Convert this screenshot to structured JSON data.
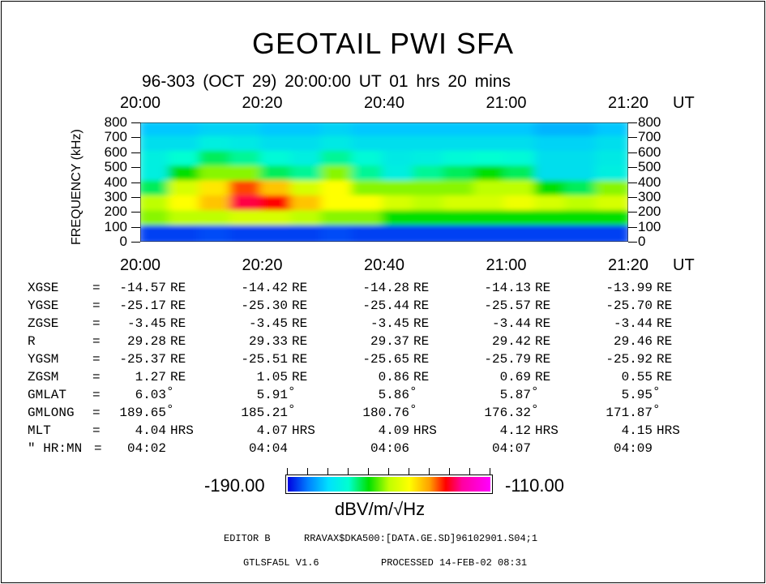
{
  "header": {
    "title": "GEOTAIL PWI SFA",
    "subtitle": "96-303 (OCT 29) 20:00:00 UT   01 hrs  20 mins"
  },
  "chart_data": {
    "type": "heatmap",
    "title": "GEOTAIL PWI SFA",
    "ylabel": "FREQUENCY (kHz)",
    "xlabel": "UT",
    "x_ticks": [
      "20:00",
      "20:20",
      "20:40",
      "21:00",
      "21:20"
    ],
    "x_unit": "UT",
    "y_ticks": [
      "800",
      "700",
      "600",
      "500",
      "400",
      "300",
      "200",
      "100",
      "0"
    ],
    "ylim": [
      0,
      800
    ],
    "xlim": [
      "20:00",
      "21:20"
    ],
    "time_bins_min": [
      0,
      5,
      10,
      15,
      20,
      25,
      30,
      35,
      40,
      45,
      50,
      55,
      60,
      65,
      70,
      75
    ],
    "freq_bins_khz": [
      "700-800",
      "600-700",
      "500-600",
      "400-500",
      "300-400",
      "200-300",
      "100-200",
      "0-100"
    ],
    "values_dB": [
      [
        -172,
        -172,
        -170,
        -170,
        -172,
        -172,
        -170,
        -172,
        -172,
        -172,
        -172,
        -172,
        -172,
        -174,
        -174,
        -172
      ],
      [
        -168,
        -168,
        -165,
        -166,
        -168,
        -168,
        -166,
        -168,
        -168,
        -168,
        -168,
        -168,
        -168,
        -170,
        -170,
        -168
      ],
      [
        -165,
        -162,
        -158,
        -160,
        -163,
        -165,
        -160,
        -163,
        -166,
        -165,
        -163,
        -162,
        -163,
        -168,
        -168,
        -166
      ],
      [
        -165,
        -155,
        -150,
        -150,
        -158,
        -160,
        -150,
        -160,
        -165,
        -160,
        -158,
        -155,
        -158,
        -168,
        -168,
        -165
      ],
      [
        -158,
        -145,
        -138,
        -128,
        -135,
        -145,
        -140,
        -150,
        -150,
        -150,
        -150,
        -148,
        -148,
        -155,
        -158,
        -150
      ],
      [
        -148,
        -140,
        -135,
        -122,
        -125,
        -135,
        -140,
        -140,
        -145,
        -148,
        -145,
        -145,
        -142,
        -145,
        -148,
        -145
      ],
      [
        -150,
        -148,
        -148,
        -145,
        -145,
        -148,
        -150,
        -150,
        -155,
        -155,
        -155,
        -155,
        -155,
        -155,
        -155,
        -155
      ],
      [
        -185,
        -185,
        -184,
        -185,
        -185,
        -185,
        -184,
        -185,
        -185,
        -185,
        -185,
        -185,
        -185,
        -185,
        -185,
        -185
      ]
    ],
    "colorbar": {
      "min_label": "-190.00",
      "max_label": "-110.00",
      "min": -190,
      "max": -110,
      "unit": "dBV/m/√Hz"
    }
  },
  "ephemeris": {
    "rows": [
      {
        "label": "XGSE",
        "unit": "RE",
        "values": [
          "-14.57",
          "-14.42",
          "-14.28",
          "-14.13",
          "-13.99"
        ]
      },
      {
        "label": "YGSE",
        "unit": "RE",
        "values": [
          "-25.17",
          "-25.30",
          "-25.44",
          "-25.57",
          "-25.70"
        ]
      },
      {
        "label": "ZGSE",
        "unit": "RE",
        "values": [
          "-3.45",
          "-3.45",
          "-3.45",
          "-3.44",
          "-3.44"
        ]
      },
      {
        "label": "R",
        "unit": "RE",
        "values": [
          "29.28",
          "29.33",
          "29.37",
          "29.42",
          "29.46"
        ]
      },
      {
        "label": "YGSM",
        "unit": "RE",
        "values": [
          "-25.37",
          "-25.51",
          "-25.65",
          "-25.79",
          "-25.92"
        ]
      },
      {
        "label": "ZGSM",
        "unit": "RE",
        "values": [
          "1.27",
          "1.05",
          "0.86",
          "0.69",
          "0.55"
        ]
      },
      {
        "label": "GMLAT",
        "unit": "°",
        "values": [
          "6.03",
          "5.91",
          "5.86",
          "5.87",
          "5.95"
        ]
      },
      {
        "label": "GMLONG",
        "unit": "°",
        "values": [
          "189.65",
          "185.21",
          "180.76",
          "176.32",
          "171.87"
        ]
      },
      {
        "label": "MLT",
        "unit": "HRS",
        "values": [
          "4.04",
          "4.07",
          "4.09",
          "4.12",
          "4.15"
        ]
      },
      {
        "label": "\" HR:MN",
        "unit": "",
        "values": [
          "04:02",
          "04:04",
          "04:06",
          "04:07",
          "04:09"
        ]
      }
    ],
    "equals": "="
  },
  "footer": {
    "editor": "EDITOR B",
    "file": "RRAVAX$DKA500:[DATA.GE.SD]96102901.S04;1",
    "program": "GTLSFA5L V1.6",
    "processed": "PROCESSED 14-FEB-02  08:31"
  }
}
